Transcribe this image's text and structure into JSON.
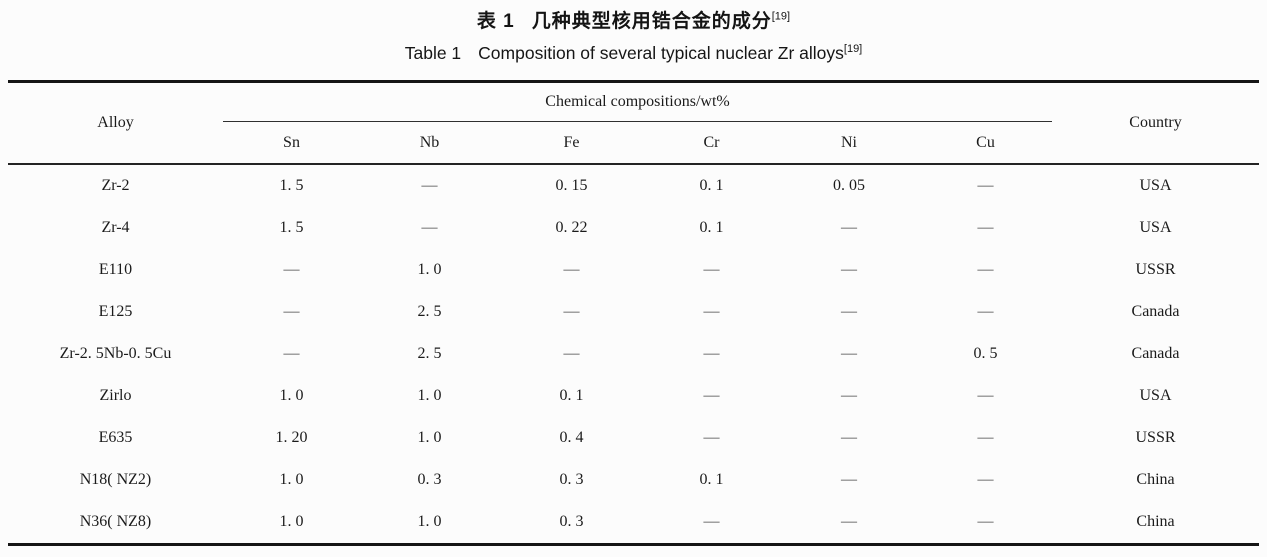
{
  "colors": {
    "background": "#fcfcfc",
    "text": "#1b1b1b",
    "rule": "#161616"
  },
  "titles": {
    "zh": {
      "prefix": "表 1",
      "text": "几种典型核用锆合金的成分",
      "ref": "[19]"
    },
    "en": {
      "prefix": "Table 1",
      "text": "Composition of several typical nuclear Zr alloys",
      "ref": "[19]"
    }
  },
  "table": {
    "header": {
      "alloy": "Alloy",
      "chem_group": "Chemical compositions/wt%",
      "elements": [
        "Sn",
        "Nb",
        "Fe",
        "Cr",
        "Ni",
        "Cu"
      ],
      "country": "Country"
    },
    "rows": [
      {
        "alloy": "Zr-2",
        "values": [
          "1. 5",
          "—",
          "0. 15",
          "0. 1",
          "0. 05",
          "—"
        ],
        "country": "USA"
      },
      {
        "alloy": "Zr-4",
        "values": [
          "1. 5",
          "—",
          "0. 22",
          "0. 1",
          "—",
          "—"
        ],
        "country": "USA"
      },
      {
        "alloy": "E110",
        "values": [
          "—",
          "1. 0",
          "—",
          "—",
          "—",
          "—"
        ],
        "country": "USSR"
      },
      {
        "alloy": "E125",
        "values": [
          "—",
          "2. 5",
          "—",
          "—",
          "—",
          "—"
        ],
        "country": "Canada"
      },
      {
        "alloy": "Zr-2. 5Nb-0. 5Cu",
        "values": [
          "—",
          "2. 5",
          "—",
          "—",
          "—",
          "0. 5"
        ],
        "country": "Canada"
      },
      {
        "alloy": "Zirlo",
        "values": [
          "1. 0",
          "1. 0",
          "0. 1",
          "—",
          "—",
          "—"
        ],
        "country": "USA"
      },
      {
        "alloy": "E635",
        "values": [
          "1. 20",
          "1. 0",
          "0. 4",
          "—",
          "—",
          "—"
        ],
        "country": "USSR"
      },
      {
        "alloy": "N18( NZ2)",
        "values": [
          "1. 0",
          "0. 3",
          "0. 3",
          "0. 1",
          "—",
          "—"
        ],
        "country": "China"
      },
      {
        "alloy": "N36( NZ8)",
        "values": [
          "1. 0",
          "1. 0",
          "0. 3",
          "—",
          "—",
          "—"
        ],
        "country": "China"
      }
    ]
  }
}
